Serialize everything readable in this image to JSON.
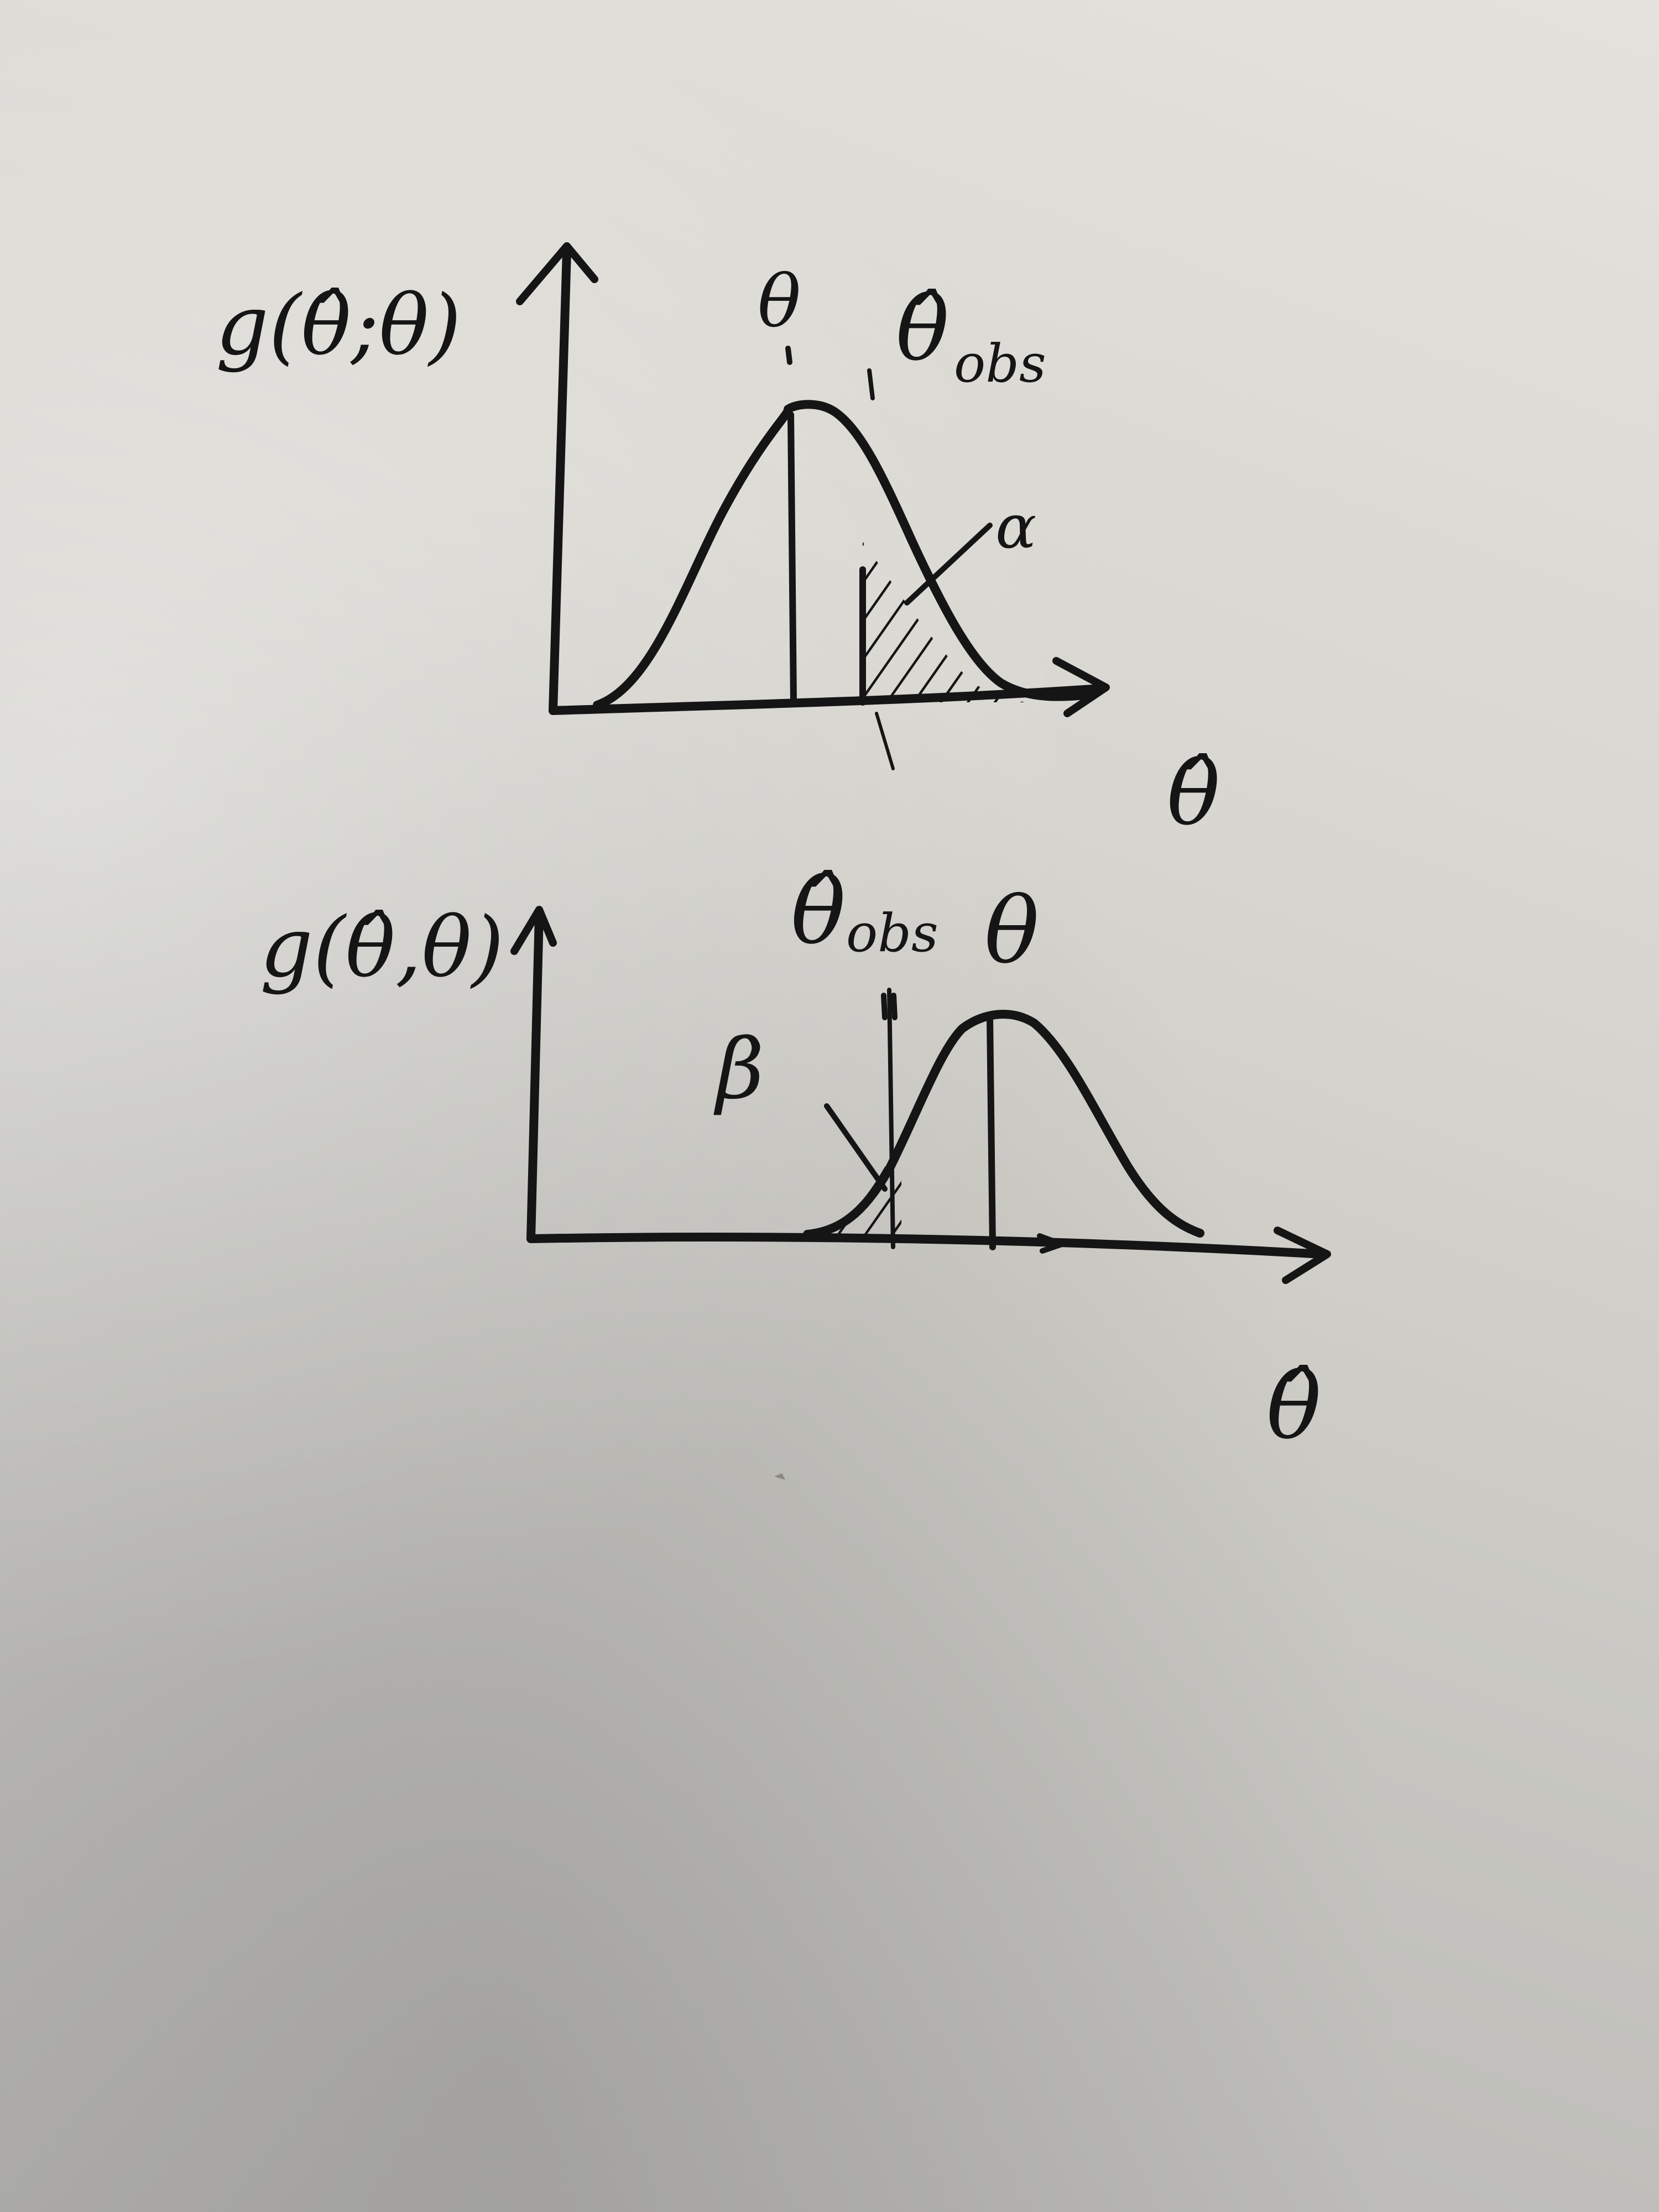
{
  "diagram": {
    "top_plot": {
      "y_axis_label": "g(θ̂;θ)",
      "x_axis_label": "θ̂",
      "mean_label": "θ",
      "observed_label": "θ̂",
      "observed_subscript": "obs",
      "tail_area_label": "α"
    },
    "bottom_plot": {
      "y_axis_label": "g(θ̂,θ)",
      "x_axis_label": "θ̂",
      "mean_label": "θ",
      "observed_label": "θ̂",
      "observed_subscript": "obs",
      "tail_area_label": "β"
    }
  }
}
